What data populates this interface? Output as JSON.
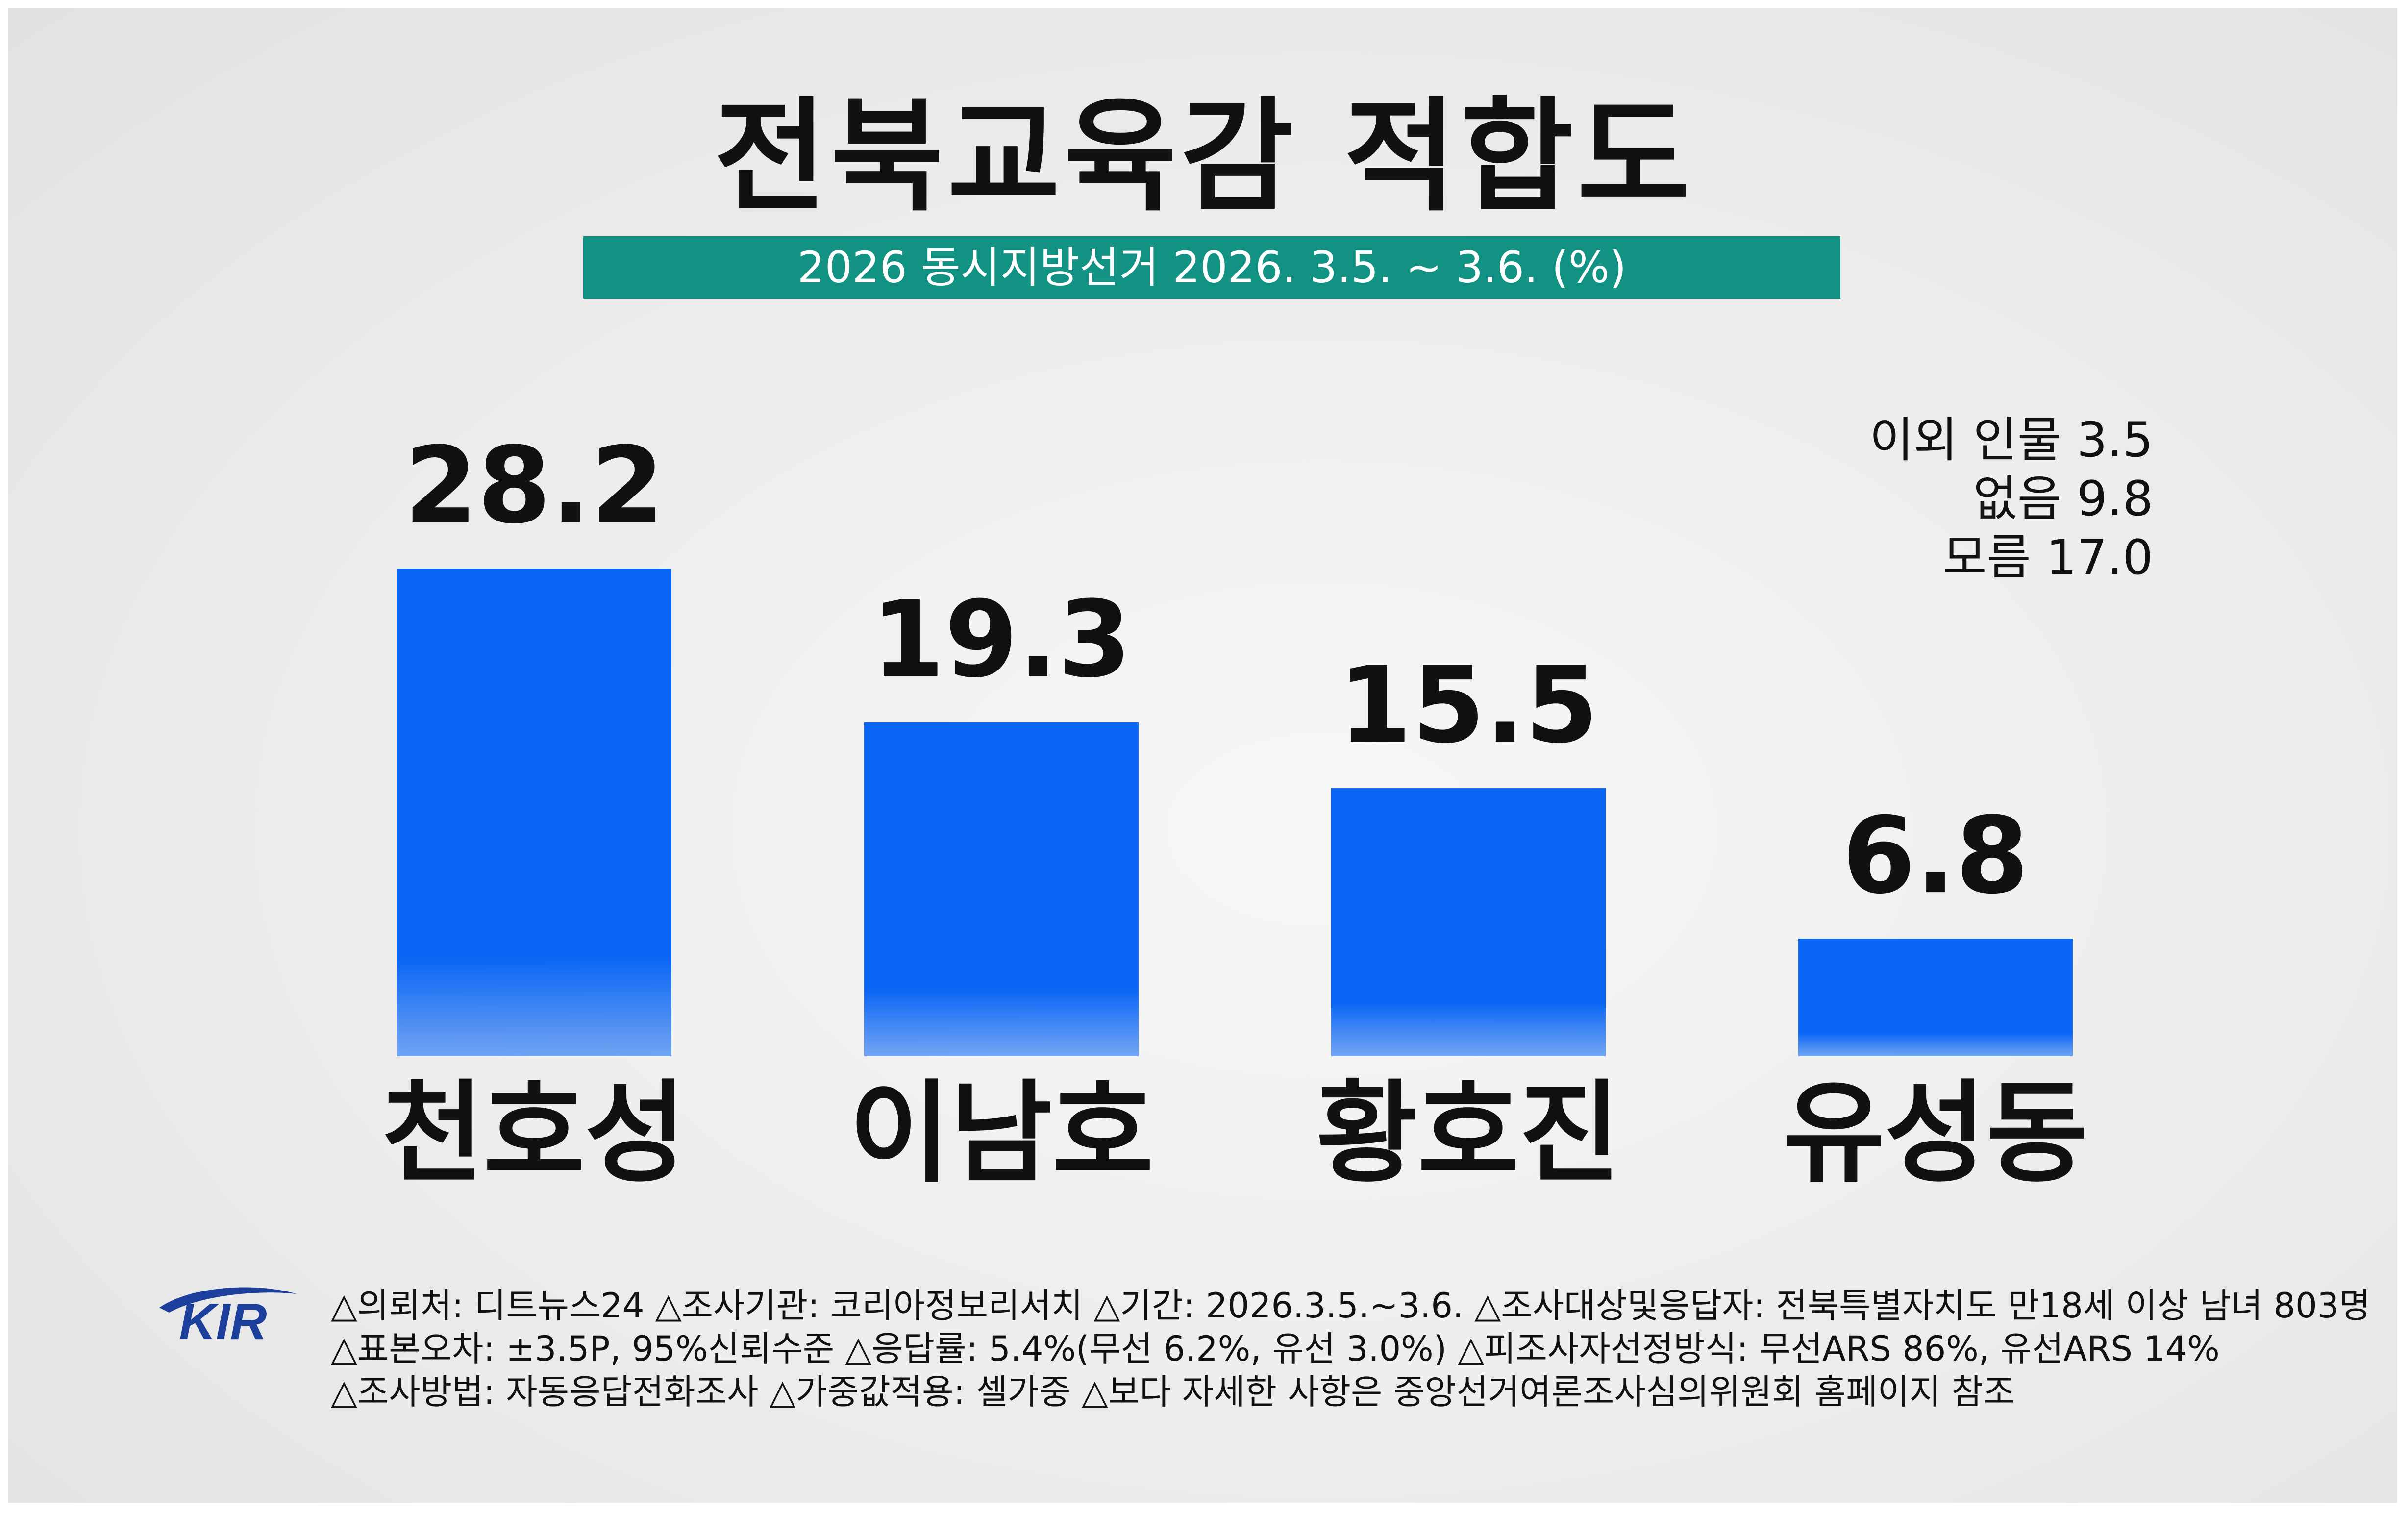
{
  "title": "전북교육감 적합도",
  "subtitle": "2026 동시지방선거 2026. 3.5. ~ 3.6.   (%)",
  "others": [
    {
      "label": "이외 인물 3.5"
    },
    {
      "label": "없음 9.8"
    },
    {
      "label": "모름 17.0"
    }
  ],
  "footer": {
    "line1": "△의뢰처: 디트뉴스24  △조사기관: 코리아정보리서치  △기간: 2026.3.5.~3.6.  △조사대상및응답자: 전북특별자치도 만18세 이상 남녀 803명",
    "line2": "△표본오차:  ±3.5P, 95%신뢰수준  △응답률: 5.4%(무선 6.2%, 유선 3.0%)  △피조사자선정방식: 무선ARS 86%, 유선ARS 14%",
    "line3": "△조사방법: 자동응답전화조사  △가중값적용: 셀가중   △보다 자세한 사항은 중앙선거여론조사심의위원회 홈페이지 참조"
  },
  "logo": {
    "text": "KIR"
  },
  "colors": {
    "bar": "#0a66f5",
    "accent": "#129282",
    "logo": "#1b3f9a"
  },
  "chart_data": {
    "type": "bar",
    "title": "전북교육감 적합도",
    "subtitle": "2026 동시지방선거 2026. 3.5. ~ 3.6.   (%)",
    "categories": [
      "천호성",
      "이남호",
      "황호진",
      "유성동"
    ],
    "values": [
      28.2,
      19.3,
      15.5,
      6.8
    ],
    "value_labels": [
      "28.2",
      "19.3",
      "15.5",
      "6.8"
    ],
    "ylim": [
      0,
      28.2
    ],
    "grid": false,
    "legend": "none"
  }
}
